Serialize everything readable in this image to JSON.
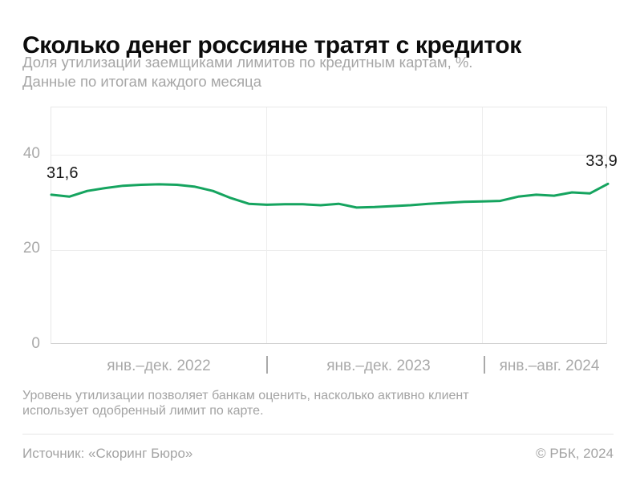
{
  "header": {
    "title": "Сколько денег россияне тратят с кредиток",
    "subtitle_line1": "Доля утилизации заемщиками лимитов по кредитным картам, %.",
    "subtitle_line2": "Данные по итогам каждого месяца"
  },
  "chart_data": {
    "type": "line",
    "title": "Сколько денег россияне тратят с кредиток",
    "subtitle": "Доля утилизации заемщиками лимитов по кредитным картам, %. Данные по итогам каждого месяца",
    "xlabel": "",
    "ylabel": "",
    "ylim": [
      0,
      50
    ],
    "yticks": [
      0,
      20,
      40
    ],
    "ytick_display": [
      "40",
      "20",
      "0"
    ],
    "grid": true,
    "legend": false,
    "line_color": "#15a45f",
    "x": [
      "2022-01",
      "2022-02",
      "2022-03",
      "2022-04",
      "2022-05",
      "2022-06",
      "2022-07",
      "2022-08",
      "2022-09",
      "2022-10",
      "2022-11",
      "2022-12",
      "2023-01",
      "2023-02",
      "2023-03",
      "2023-04",
      "2023-05",
      "2023-06",
      "2023-07",
      "2023-08",
      "2023-09",
      "2023-10",
      "2023-11",
      "2023-12",
      "2024-01",
      "2024-02",
      "2024-03",
      "2024-04",
      "2024-05",
      "2024-06",
      "2024-07",
      "2024-08"
    ],
    "series": [
      {
        "name": "Доля утилизации лимитов, %",
        "values": [
          31.6,
          31.2,
          32.4,
          33.0,
          33.5,
          33.7,
          33.8,
          33.7,
          33.3,
          32.4,
          30.9,
          29.7,
          29.5,
          29.6,
          29.6,
          29.4,
          29.7,
          28.9,
          29.0,
          29.2,
          29.4,
          29.7,
          29.9,
          30.1,
          30.2,
          30.3,
          31.2,
          31.6,
          31.4,
          32.1,
          31.9,
          33.9
        ]
      }
    ],
    "x_period_labels": [
      "янв.–дек. 2022",
      "янв.–дек. 2023",
      "янв.–авг. 2024"
    ],
    "first_point_label": "31,6",
    "last_point_label": "33,9"
  },
  "footer": {
    "note_line1": "Уровень утилизации позволяет банкам оценить, насколько активно клиент",
    "note_line2": "использует одобренный лимит по карте.",
    "source": "Источник: «Скоринг Бюро»",
    "copyright": "© РБК, 2024"
  }
}
